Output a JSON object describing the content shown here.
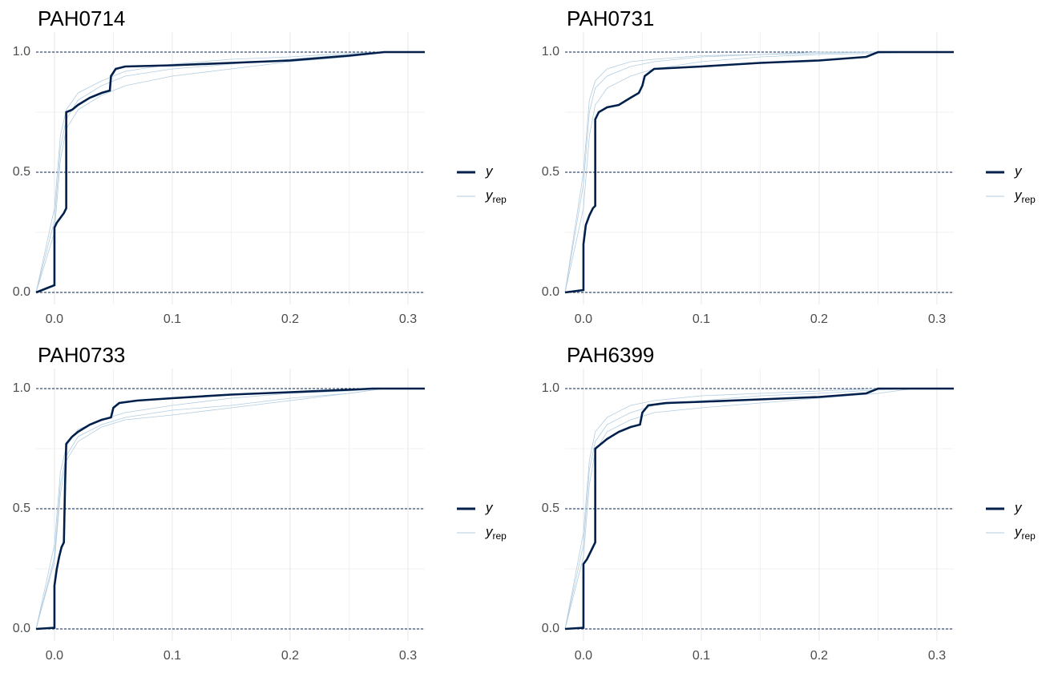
{
  "chart_data": [
    {
      "type": "line",
      "title": "PAH0714",
      "xlim": [
        -0.0156,
        0.3143
      ],
      "ylim": [
        -0.05,
        1.0833
      ],
      "xticks": [
        {
          "value": 0,
          "label": "0.0"
        },
        0.1,
        0.2,
        0.3
      ],
      "yticks": [
        {
          "value": 0,
          "label": "0.0"
        },
        0.5,
        {
          "value": 1,
          "label": "1.0"
        }
      ],
      "minor_xticks": [
        0.05,
        0.15,
        0.25
      ],
      "minor_yticks": [
        0.25,
        0.75
      ],
      "hlines": [
        0,
        0.5,
        1
      ],
      "grid": true,
      "series": [
        {
          "name": "y",
          "color": "#011f4b",
          "x": [
            -0.0156,
            0,
            0,
            0.002,
            0.005,
            0.008,
            0.01,
            0.01,
            0.015,
            0.02,
            0.03,
            0.04,
            0.047,
            0.048,
            0.052,
            0.06,
            0.1,
            0.15,
            0.2,
            0.25,
            0.28,
            0.3143
          ],
          "values": [
            0,
            0.03,
            0.27,
            0.29,
            0.31,
            0.33,
            0.35,
            0.75,
            0.76,
            0.78,
            0.81,
            0.83,
            0.84,
            0.9,
            0.93,
            0.94,
            0.945,
            0.955,
            0.965,
            0.985,
            1,
            1
          ]
        },
        {
          "name": "y_rep",
          "color": "#b3cde0",
          "x": [
            -0.0156,
            0,
            0.005,
            0.01,
            0.02,
            0.04,
            0.06,
            0.1,
            0.15,
            0.2,
            0.25,
            0.28,
            0.3143
          ],
          "values": [
            0,
            0.3,
            0.6,
            0.72,
            0.8,
            0.86,
            0.9,
            0.93,
            0.95,
            0.97,
            0.99,
            1,
            1
          ]
        },
        {
          "color": "#b3cde0",
          "x": [
            -0.0156,
            0,
            0.005,
            0.01,
            0.02,
            0.04,
            0.06,
            0.1,
            0.15,
            0.2,
            0.25,
            0.28,
            0.3143
          ],
          "values": [
            0,
            0.35,
            0.65,
            0.76,
            0.83,
            0.88,
            0.92,
            0.95,
            0.97,
            0.98,
            0.995,
            1,
            1
          ]
        },
        {
          "color": "#b3cde0",
          "x": [
            -0.0156,
            0,
            0.005,
            0.01,
            0.02,
            0.04,
            0.06,
            0.1,
            0.15,
            0.2,
            0.25,
            0.28,
            0.3143
          ],
          "values": [
            0,
            0.25,
            0.55,
            0.68,
            0.76,
            0.82,
            0.86,
            0.9,
            0.93,
            0.96,
            0.98,
            1,
            1
          ]
        }
      ]
    },
    {
      "type": "line",
      "title": "PAH0731",
      "xlim": [
        -0.0156,
        0.3143
      ],
      "ylim": [
        -0.05,
        1.0833
      ],
      "xticks": [
        {
          "value": 0,
          "label": "0.0"
        },
        0.1,
        0.2,
        0.3
      ],
      "yticks": [
        {
          "value": 0,
          "label": "0.0"
        },
        0.5,
        {
          "value": 1,
          "label": "1.0"
        }
      ],
      "minor_xticks": [
        0.05,
        0.15,
        0.25
      ],
      "minor_yticks": [
        0.25,
        0.75
      ],
      "hlines": [
        0,
        0.5,
        1
      ],
      "grid": true,
      "series": [
        {
          "name": "y",
          "color": "#011f4b",
          "x": [
            -0.0156,
            0,
            0,
            0.002,
            0.005,
            0.008,
            0.01,
            0.01,
            0.013,
            0.02,
            0.03,
            0.04,
            0.047,
            0.05,
            0.052,
            0.06,
            0.1,
            0.15,
            0.2,
            0.24,
            0.25,
            0.3143
          ],
          "values": [
            0,
            0.01,
            0.2,
            0.28,
            0.32,
            0.35,
            0.36,
            0.72,
            0.75,
            0.77,
            0.78,
            0.81,
            0.83,
            0.86,
            0.9,
            0.93,
            0.94,
            0.955,
            0.965,
            0.98,
            1,
            1
          ]
        },
        {
          "name": "y_rep",
          "color": "#b3cde0",
          "x": [
            -0.0156,
            0,
            0.005,
            0.01,
            0.02,
            0.04,
            0.06,
            0.1,
            0.15,
            0.2,
            0.25,
            0.28,
            0.3143
          ],
          "values": [
            0,
            0.45,
            0.75,
            0.85,
            0.9,
            0.94,
            0.96,
            0.98,
            0.99,
            0.995,
            1,
            1,
            1
          ]
        },
        {
          "color": "#b3cde0",
          "x": [
            -0.0156,
            0,
            0.005,
            0.01,
            0.02,
            0.04,
            0.06,
            0.1,
            0.15,
            0.2,
            0.25,
            0.28,
            0.3143
          ],
          "values": [
            0,
            0.35,
            0.65,
            0.78,
            0.85,
            0.9,
            0.93,
            0.96,
            0.98,
            0.99,
            0.995,
            1,
            1
          ]
        },
        {
          "color": "#b3cde0",
          "x": [
            -0.0156,
            0,
            0.005,
            0.01,
            0.02,
            0.04,
            0.06,
            0.1,
            0.15,
            0.2,
            0.25,
            0.28,
            0.3143
          ],
          "values": [
            0,
            0.5,
            0.8,
            0.88,
            0.93,
            0.96,
            0.97,
            0.985,
            0.99,
            1,
            1,
            1,
            1
          ]
        }
      ]
    },
    {
      "type": "line",
      "title": "PAH0733",
      "xlim": [
        -0.0156,
        0.3143
      ],
      "ylim": [
        -0.05,
        1.0833
      ],
      "xticks": [
        {
          "value": 0,
          "label": "0.0"
        },
        0.1,
        0.2,
        0.3
      ],
      "yticks": [
        {
          "value": 0,
          "label": "0.0"
        },
        0.5,
        {
          "value": 1,
          "label": "1.0"
        }
      ],
      "minor_xticks": [
        0.05,
        0.15,
        0.25
      ],
      "minor_yticks": [
        0.25,
        0.75
      ],
      "hlines": [
        0,
        0.5,
        1
      ],
      "grid": true,
      "series": [
        {
          "name": "y",
          "color": "#011f4b",
          "x": [
            -0.0156,
            0,
            0,
            0.002,
            0.004,
            0.006,
            0.008,
            0.009,
            0.01,
            0.015,
            0.02,
            0.03,
            0.04,
            0.048,
            0.05,
            0.055,
            0.07,
            0.1,
            0.15,
            0.2,
            0.25,
            0.27,
            0.3143
          ],
          "values": [
            0,
            0.005,
            0.18,
            0.25,
            0.3,
            0.34,
            0.36,
            0.6,
            0.77,
            0.8,
            0.82,
            0.85,
            0.87,
            0.88,
            0.92,
            0.94,
            0.95,
            0.96,
            0.975,
            0.985,
            0.995,
            1,
            1
          ]
        },
        {
          "name": "y_rep",
          "color": "#b3cde0",
          "x": [
            -0.0156,
            0,
            0.005,
            0.01,
            0.02,
            0.04,
            0.06,
            0.1,
            0.15,
            0.2,
            0.25,
            0.28,
            0.3143
          ],
          "values": [
            0,
            0.3,
            0.6,
            0.72,
            0.8,
            0.85,
            0.88,
            0.91,
            0.93,
            0.96,
            0.98,
            1,
            1
          ]
        },
        {
          "color": "#b3cde0",
          "x": [
            -0.0156,
            0,
            0.005,
            0.01,
            0.02,
            0.04,
            0.06,
            0.1,
            0.15,
            0.2,
            0.25,
            0.28,
            0.3143
          ],
          "values": [
            0,
            0.35,
            0.65,
            0.76,
            0.83,
            0.87,
            0.9,
            0.93,
            0.96,
            0.98,
            0.99,
            1,
            1
          ]
        },
        {
          "color": "#b3cde0",
          "x": [
            -0.0156,
            0,
            0.005,
            0.01,
            0.02,
            0.04,
            0.06,
            0.1,
            0.15,
            0.2,
            0.25,
            0.28,
            0.3143
          ],
          "values": [
            0,
            0.28,
            0.56,
            0.7,
            0.78,
            0.84,
            0.87,
            0.89,
            0.92,
            0.95,
            0.98,
            1,
            1
          ]
        }
      ]
    },
    {
      "type": "line",
      "title": "PAH6399",
      "xlim": [
        -0.0156,
        0.3143
      ],
      "ylim": [
        -0.05,
        1.0833
      ],
      "xticks": [
        {
          "value": 0,
          "label": "0.0"
        },
        0.1,
        0.2,
        0.3
      ],
      "yticks": [
        {
          "value": 0,
          "label": "0.0"
        },
        0.5,
        {
          "value": 1,
          "label": "1.0"
        }
      ],
      "minor_xticks": [
        0.05,
        0.15,
        0.25
      ],
      "minor_yticks": [
        0.25,
        0.75
      ],
      "hlines": [
        0,
        0.5,
        1
      ],
      "grid": true,
      "series": [
        {
          "name": "y",
          "color": "#011f4b",
          "x": [
            -0.0156,
            0,
            0,
            0.003,
            0.006,
            0.01,
            0.01,
            0.015,
            0.02,
            0.03,
            0.04,
            0.048,
            0.05,
            0.055,
            0.07,
            0.1,
            0.15,
            0.2,
            0.24,
            0.25,
            0.3143
          ],
          "values": [
            0,
            0.005,
            0.27,
            0.29,
            0.32,
            0.36,
            0.75,
            0.77,
            0.79,
            0.82,
            0.84,
            0.85,
            0.9,
            0.93,
            0.94,
            0.945,
            0.955,
            0.965,
            0.98,
            1,
            1
          ]
        },
        {
          "name": "y_rep",
          "color": "#b3cde0",
          "x": [
            -0.0156,
            0,
            0.005,
            0.01,
            0.02,
            0.04,
            0.06,
            0.1,
            0.15,
            0.2,
            0.25,
            0.28,
            0.3143
          ],
          "values": [
            0,
            0.4,
            0.7,
            0.82,
            0.88,
            0.93,
            0.95,
            0.97,
            0.98,
            0.99,
            1,
            1,
            1
          ]
        },
        {
          "color": "#b3cde0",
          "x": [
            -0.0156,
            0,
            0.005,
            0.01,
            0.02,
            0.04,
            0.06,
            0.1,
            0.15,
            0.2,
            0.25,
            0.28,
            0.3143
          ],
          "values": [
            0,
            0.3,
            0.6,
            0.74,
            0.82,
            0.87,
            0.9,
            0.92,
            0.94,
            0.96,
            0.98,
            1,
            1
          ]
        },
        {
          "color": "#b3cde0",
          "x": [
            -0.0156,
            0,
            0.005,
            0.01,
            0.02,
            0.04,
            0.06,
            0.1,
            0.15,
            0.2,
            0.25,
            0.28,
            0.3143
          ],
          "values": [
            0,
            0.35,
            0.66,
            0.78,
            0.85,
            0.9,
            0.93,
            0.95,
            0.97,
            0.98,
            0.995,
            1,
            1
          ]
        }
      ]
    }
  ]
}
